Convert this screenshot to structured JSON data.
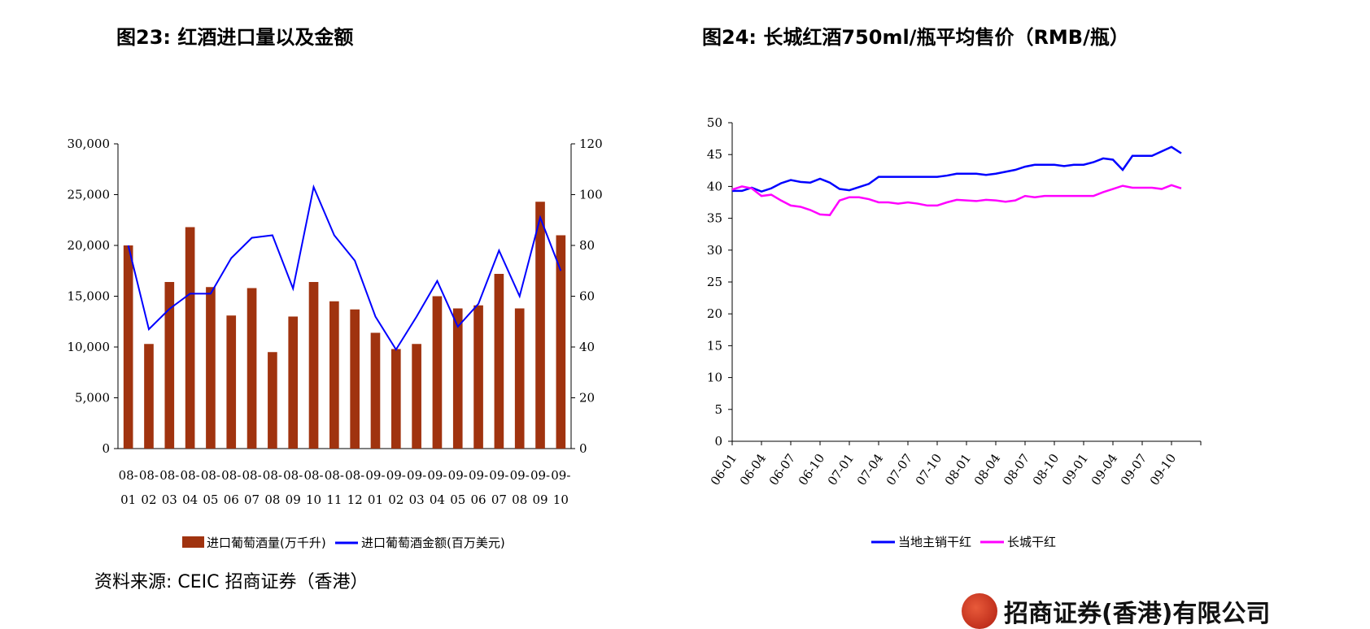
{
  "figures": {
    "fig23_title": "图23:  红酒进口量以及金额",
    "fig24_title": "图24:  长城红酒750ml/瓶平均售价（RMB/瓶）"
  },
  "source": "资料来源:  CEIC  招商证券（香港）",
  "logo_text": "招商证券(香港)有限公司",
  "chart_data": [
    {
      "type": "bar",
      "categories": [
        "08-01",
        "08-02",
        "08-03",
        "08-04",
        "08-05",
        "08-06",
        "08-07",
        "08-08",
        "08-09",
        "08-10",
        "08-11",
        "08-12",
        "09-01",
        "09-02",
        "09-03",
        "09-04",
        "09-05",
        "09-06",
        "09-07",
        "09-08",
        "09-09",
        "09-10"
      ],
      "category_lines": [
        [
          "08-",
          "01"
        ],
        [
          "08-",
          "02"
        ],
        [
          "08-",
          "03"
        ],
        [
          "08-",
          "04"
        ],
        [
          "08-",
          "05"
        ],
        [
          "08-",
          "06"
        ],
        [
          "08-",
          "07"
        ],
        [
          "08-",
          "08"
        ],
        [
          "08-",
          "09"
        ],
        [
          "08-",
          "10"
        ],
        [
          "08-",
          "11"
        ],
        [
          "08-",
          "12"
        ],
        [
          "09-",
          "01"
        ],
        [
          "09-",
          "02"
        ],
        [
          "09-",
          "03"
        ],
        [
          "09-",
          "04"
        ],
        [
          "09-",
          "05"
        ],
        [
          "09-",
          "06"
        ],
        [
          "09-",
          "07"
        ],
        [
          "09-",
          "08"
        ],
        [
          "09-",
          "09"
        ],
        [
          "09-",
          "10"
        ]
      ],
      "series": [
        {
          "name": "进口葡萄酒量(万千升)",
          "kind": "bar",
          "axis": "left",
          "color": "#a0330f",
          "values": [
            20000,
            10300,
            16400,
            21800,
            15900,
            13100,
            15800,
            9500,
            13000,
            16400,
            14500,
            13700,
            11400,
            9800,
            10300,
            15000,
            13800,
            14100,
            17200,
            13800,
            24300,
            21000
          ]
        },
        {
          "name": "进口葡萄酒金额(百万美元)",
          "kind": "line",
          "axis": "right",
          "color": "#0000ff",
          "values": [
            80,
            47,
            55,
            61,
            61,
            75,
            83,
            84,
            63,
            103,
            84,
            74,
            52,
            39,
            52,
            66,
            48,
            57,
            78,
            60,
            91,
            70
          ]
        }
      ],
      "left_ticks": [
        "0",
        "5,000",
        "10,000",
        "15,000",
        "20,000",
        "25,000",
        "30,000"
      ],
      "right_ticks": [
        "0",
        "20",
        "40",
        "60",
        "80",
        "100",
        "120"
      ],
      "ylim_left": [
        0,
        30000
      ],
      "ylim_right": [
        0,
        120
      ],
      "legend_position": "bottom"
    },
    {
      "type": "line",
      "x_ticks": [
        "06-01",
        "06-04",
        "06-07",
        "06-10",
        "07-01",
        "07-04",
        "07-07",
        "07-10",
        "08-01",
        "08-04",
        "08-07",
        "08-10",
        "09-01",
        "09-04",
        "09-07",
        "09-10"
      ],
      "x_range": [
        "06-01",
        "09-10"
      ],
      "ylim": [
        0,
        50
      ],
      "y_ticks": [
        "0",
        "5",
        "10",
        "15",
        "20",
        "25",
        "30",
        "35",
        "40",
        "45",
        "50"
      ],
      "series": [
        {
          "name": "当地主销干红",
          "color": "#0000ff",
          "values": [
            39.3,
            39.3,
            39.8,
            39.2,
            39.7,
            40.5,
            41.0,
            40.7,
            40.6,
            41.2,
            40.6,
            39.6,
            39.4,
            39.9,
            40.4,
            41.5,
            41.5,
            41.5,
            41.5,
            41.5,
            41.5,
            41.5,
            41.7,
            42.0,
            42.0,
            42.0,
            41.8,
            42.0,
            42.3,
            42.6,
            43.1,
            43.4,
            43.4,
            43.4,
            43.2,
            43.4,
            43.4,
            43.8,
            44.4,
            44.2,
            42.6,
            44.8,
            44.8,
            44.8,
            45.5,
            46.2,
            45.2
          ]
        },
        {
          "name": "长城干红",
          "color": "#ff00ff",
          "values": [
            39.5,
            40.0,
            39.7,
            38.5,
            38.7,
            37.8,
            37.0,
            36.8,
            36.3,
            35.6,
            35.5,
            37.8,
            38.3,
            38.3,
            38.0,
            37.5,
            37.5,
            37.3,
            37.5,
            37.3,
            37.0,
            37.0,
            37.5,
            37.9,
            37.8,
            37.7,
            37.9,
            37.8,
            37.6,
            37.8,
            38.5,
            38.3,
            38.5,
            38.5,
            38.5,
            38.5,
            38.5,
            38.5,
            39.1,
            39.6,
            40.1,
            39.8,
            39.8,
            39.8,
            39.6,
            40.2,
            39.7
          ]
        }
      ],
      "legend_position": "bottom"
    }
  ]
}
